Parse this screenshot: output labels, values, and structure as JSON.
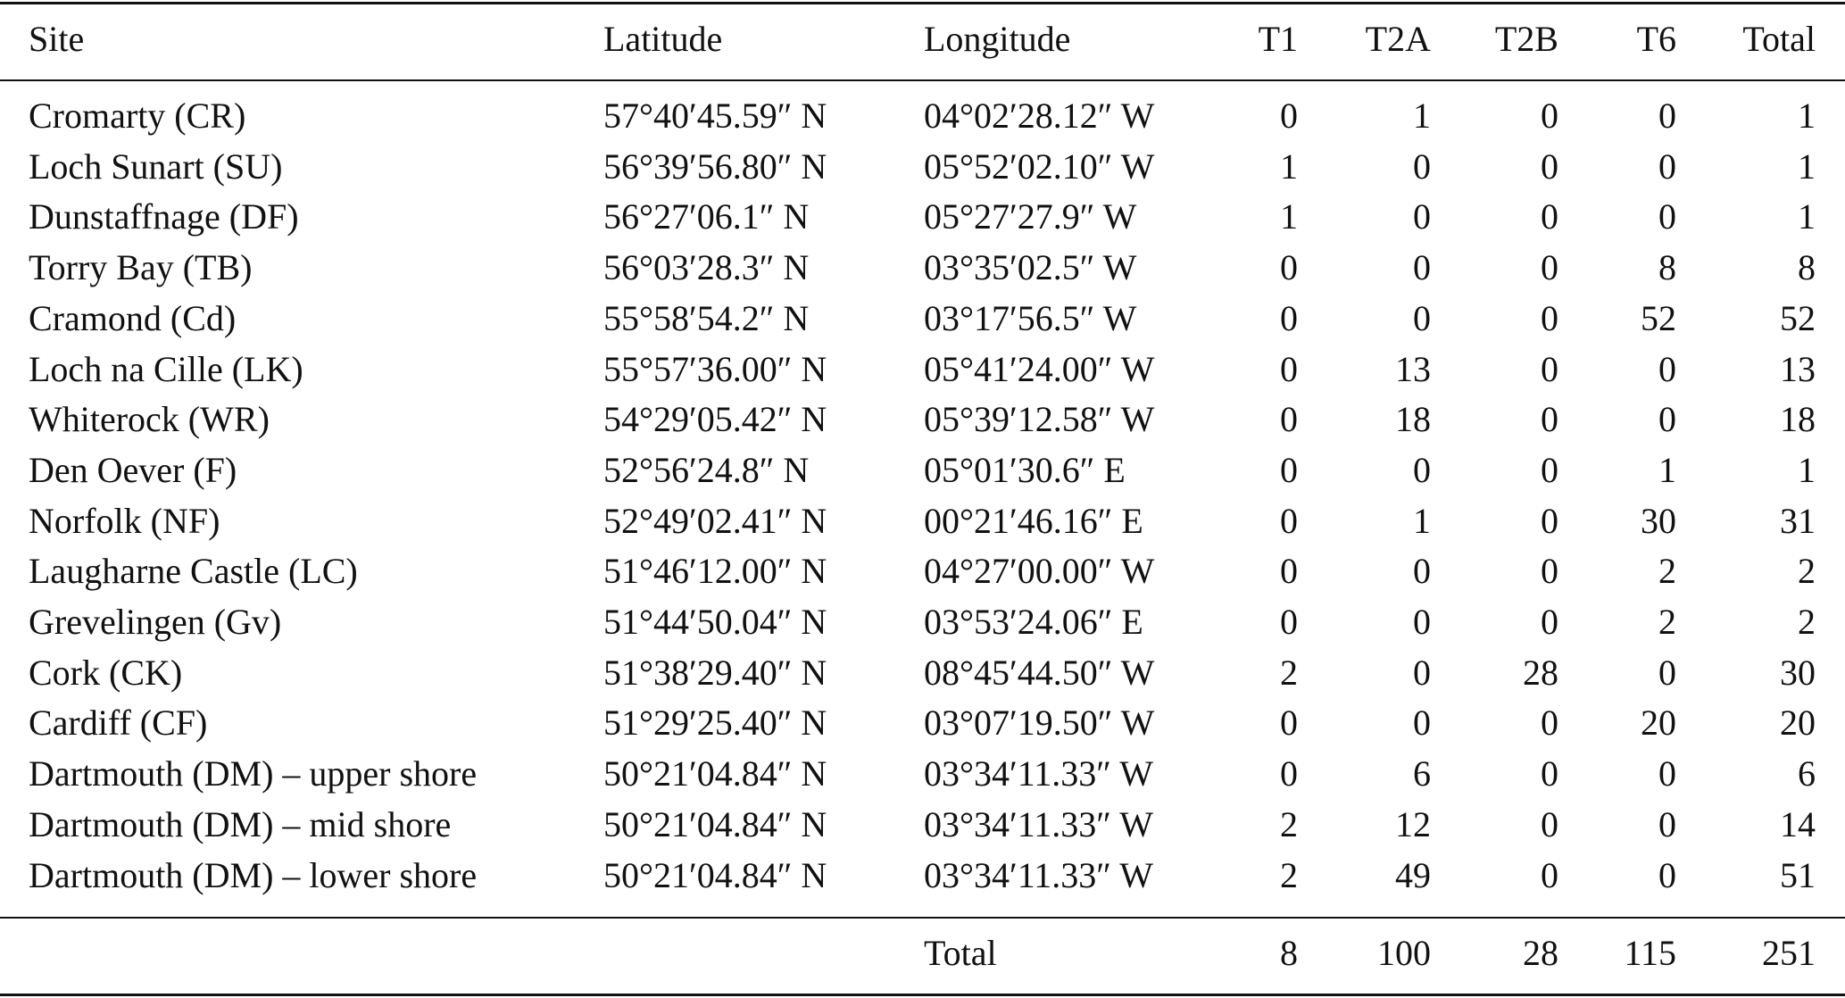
{
  "table": {
    "header": [
      "Site",
      "Latitude",
      "Longitude",
      "T1",
      "T2A",
      "T2B",
      "T6",
      "Total"
    ],
    "rows": [
      [
        "Cromarty (CR)",
        "57°40′45.59″ N",
        "04°02′28.12″ W",
        0,
        1,
        0,
        0,
        1
      ],
      [
        "Loch Sunart (SU)",
        "56°39′56.80″ N",
        "05°52′02.10″ W",
        1,
        0,
        0,
        0,
        1
      ],
      [
        "Dunstaffnage (DF)",
        "56°27′06.1″ N",
        "05°27′27.9″ W",
        1,
        0,
        0,
        0,
        1
      ],
      [
        "Torry Bay (TB)",
        "56°03′28.3″ N",
        "03°35′02.5″ W",
        0,
        0,
        0,
        8,
        8
      ],
      [
        "Cramond (Cd)",
        "55°58′54.2″ N",
        "03°17′56.5″ W",
        0,
        0,
        0,
        52,
        52
      ],
      [
        "Loch na Cille (LK)",
        "55°57′36.00″ N",
        "05°41′24.00″ W",
        0,
        13,
        0,
        0,
        13
      ],
      [
        "Whiterock (WR)",
        "54°29′05.42″ N",
        "05°39′12.58″ W",
        0,
        18,
        0,
        0,
        18
      ],
      [
        "Den Oever (F)",
        "52°56′24.8″ N",
        "05°01′30.6″ E",
        0,
        0,
        0,
        1,
        1
      ],
      [
        "Norfolk (NF)",
        "52°49′02.41″ N",
        "00°21′46.16″ E",
        0,
        1,
        0,
        30,
        31
      ],
      [
        "Laugharne Castle (LC)",
        "51°46′12.00″ N",
        "04°27′00.00″ W",
        0,
        0,
        0,
        2,
        2
      ],
      [
        "Grevelingen (Gv)",
        "51°44′50.04″ N",
        "03°53′24.06″ E",
        0,
        0,
        0,
        2,
        2
      ],
      [
        "Cork (CK)",
        "51°38′29.40″ N",
        "08°45′44.50″ W",
        2,
        0,
        28,
        0,
        30
      ],
      [
        "Cardiff (CF)",
        "51°29′25.40″ N",
        "03°07′19.50″ W",
        0,
        0,
        0,
        20,
        20
      ],
      [
        "Dartmouth (DM) – upper shore",
        "50°21′04.84″ N",
        "03°34′11.33″ W",
        0,
        6,
        0,
        0,
        6
      ],
      [
        "Dartmouth (DM) – mid shore",
        "50°21′04.84″ N",
        "03°34′11.33″ W",
        2,
        12,
        0,
        0,
        14
      ],
      [
        "Dartmouth (DM) – lower shore",
        "50°21′04.84″ N",
        "03°34′11.33″ W",
        2,
        49,
        0,
        0,
        51
      ]
    ],
    "footer": {
      "label": "Total",
      "values": [
        8,
        100,
        28,
        115,
        251
      ]
    }
  }
}
